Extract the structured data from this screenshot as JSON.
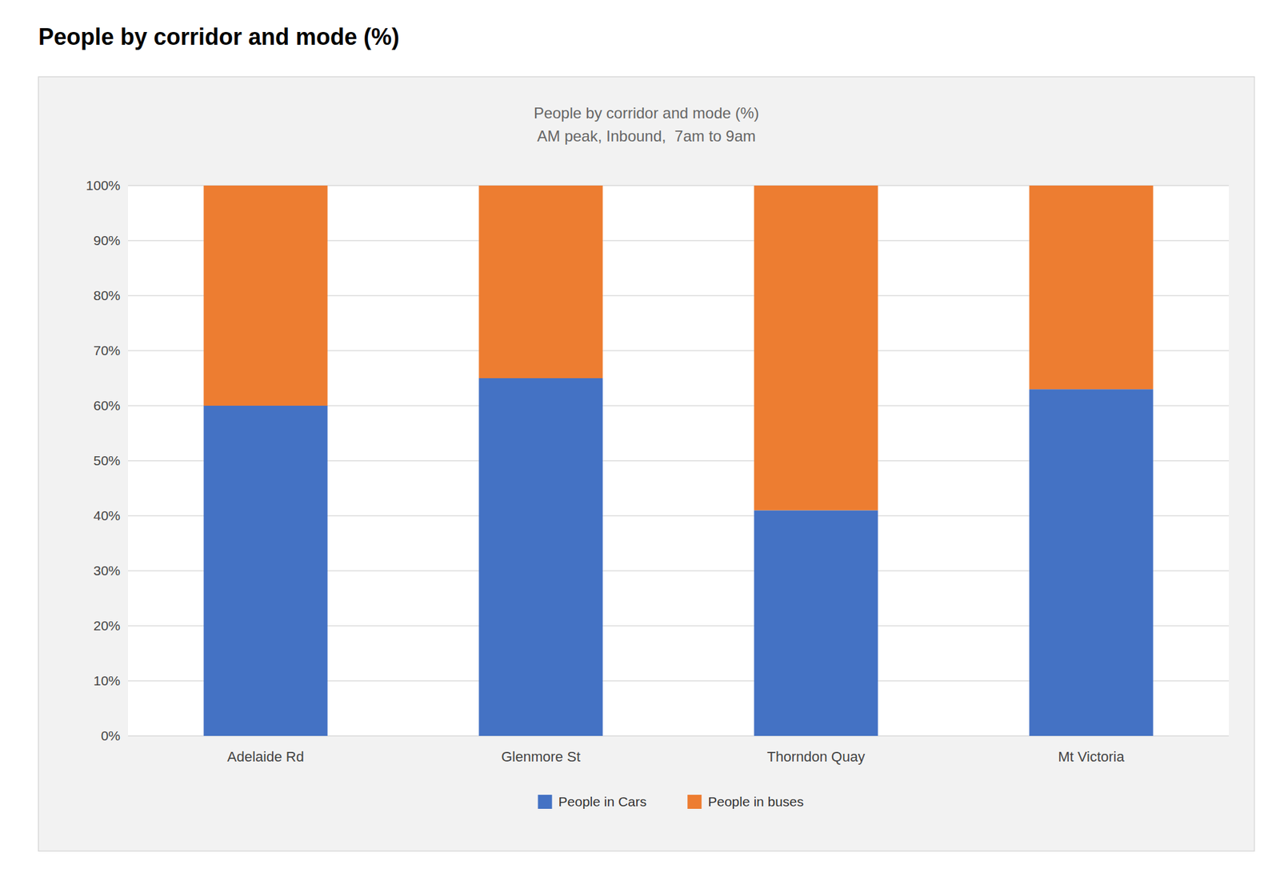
{
  "chart_data": {
    "type": "bar",
    "stacked": true,
    "title": "People by corridor and mode (%)",
    "subtitle": [
      "People by corridor and mode (%)",
      "AM peak, Inbound,  7am to 9am"
    ],
    "categories": [
      "Adelaide Rd",
      "Glenmore St",
      "Thorndon Quay",
      "Mt Victoria"
    ],
    "series": [
      {
        "name": "People in Cars",
        "color": "#4472C4",
        "values": [
          0.6,
          0.65,
          0.41,
          0.63
        ]
      },
      {
        "name": "People in buses",
        "color": "#ED7D31",
        "values": [
          0.4,
          0.35,
          0.59,
          0.37
        ]
      }
    ],
    "ylim": [
      0,
      1.0
    ],
    "yticks": [
      {
        "value": 0.0,
        "label": "0%"
      },
      {
        "value": 0.1,
        "label": "10%"
      },
      {
        "value": 0.2,
        "label": "20%"
      },
      {
        "value": 0.3,
        "label": "30%"
      },
      {
        "value": 0.4,
        "label": "40%"
      },
      {
        "value": 0.5,
        "label": "50%"
      },
      {
        "value": 0.6,
        "label": "60%"
      },
      {
        "value": 0.7,
        "label": "70%"
      },
      {
        "value": 0.8,
        "label": "80%"
      },
      {
        "value": 0.9,
        "label": "90%"
      },
      {
        "value": 1.0,
        "label": "100%"
      }
    ],
    "grid": true,
    "legend": "bottom"
  }
}
